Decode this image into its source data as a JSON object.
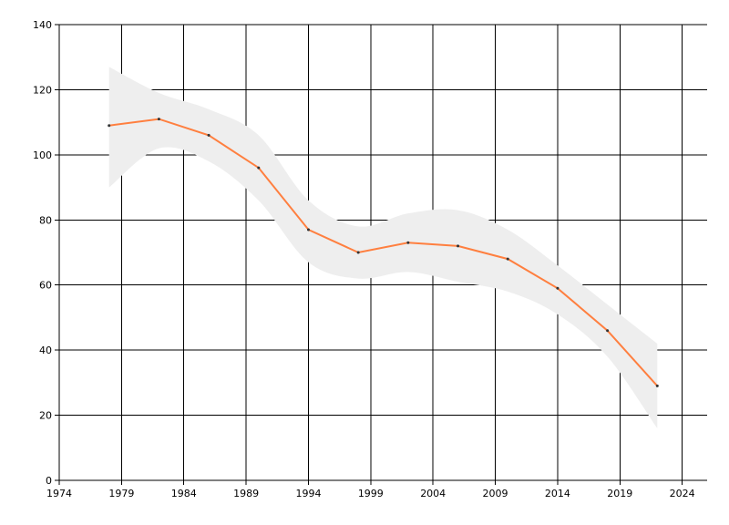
{
  "chart_data": {
    "type": "line",
    "x": [
      1978,
      1982,
      1986,
      1990,
      1994,
      1998,
      2002,
      2006,
      2010,
      2014,
      2018,
      2022
    ],
    "series": [
      {
        "values": [
          109,
          111,
          106,
          96,
          77,
          70,
          73,
          72,
          68,
          59,
          46,
          29
        ]
      }
    ],
    "band": {
      "upper": [
        127,
        119,
        114,
        106,
        86,
        78,
        82,
        83,
        77,
        66,
        54,
        42
      ],
      "lower": [
        90,
        102,
        98,
        86,
        67,
        62,
        64,
        61,
        58,
        51,
        38,
        16
      ]
    },
    "xlim": [
      1974,
      2026
    ],
    "ylim": [
      0,
      140
    ],
    "xticks": [
      1974,
      1979,
      1984,
      1989,
      1994,
      1999,
      2004,
      2009,
      2014,
      2019,
      2024
    ],
    "yticks": [
      0,
      20,
      40,
      60,
      80,
      100,
      120,
      140
    ],
    "grid": true,
    "colors": {
      "line": "#ff7f3f",
      "band": "#eeeeee",
      "grid": "#000000",
      "marker": "#333333"
    }
  }
}
